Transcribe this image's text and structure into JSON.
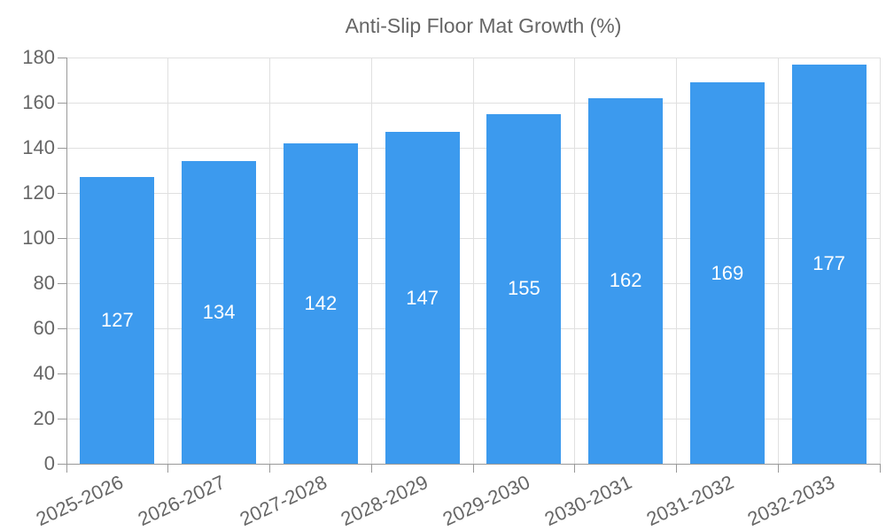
{
  "chart_data": {
    "type": "bar",
    "title": "Anti-Slip Floor Mat Growth (%)",
    "legend": {
      "position": "top",
      "entries": [
        "Anti-Slip Floor Mat Growth (%)"
      ]
    },
    "categories": [
      "2025-2026",
      "2026-2027",
      "2027-2028",
      "2028-2029",
      "2029-2030",
      "2030-2031",
      "2031-2032",
      "2032-2033"
    ],
    "values": [
      127,
      134,
      142,
      147,
      155,
      162,
      169,
      177
    ],
    "value_labels_shown": true,
    "xlabel": "",
    "ylabel": "",
    "ylim": [
      0,
      180
    ],
    "y_ticks": [
      0,
      20,
      40,
      60,
      80,
      100,
      120,
      140,
      160,
      180
    ],
    "grid": true,
    "colors": {
      "bar": "#3c9aee",
      "value_label": "#ffffff",
      "axis_line": "#999999",
      "grid_line": "#e0e0e0",
      "tick_text": "#666666",
      "legend_text": "#666666"
    }
  }
}
